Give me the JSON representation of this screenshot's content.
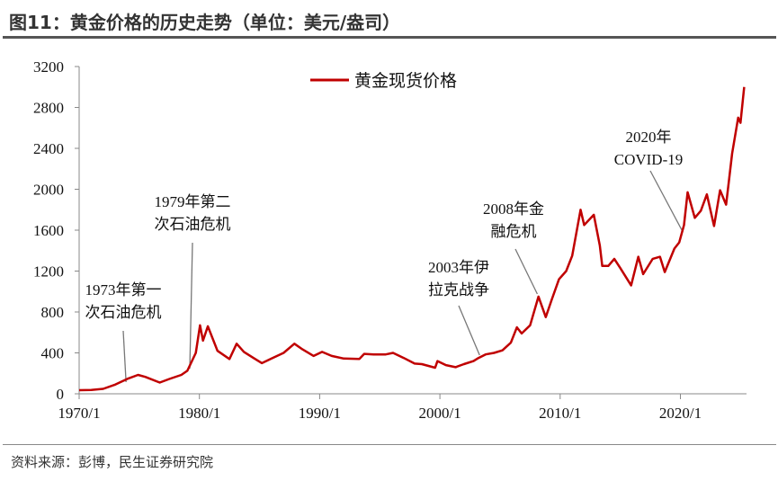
{
  "title": "图11：黄金价格的历史走势（单位：美元/盎司）",
  "source": "资料来源：彭博，民生证券研究院",
  "chart_data": {
    "type": "line",
    "xlabel": "",
    "ylabel": "",
    "xlim": [
      1970,
      2025.5
    ],
    "ylim": [
      0,
      3200
    ],
    "yticks": [
      "0",
      "400",
      "800",
      "1200",
      "1600",
      "2000",
      "2400",
      "2800",
      "3200"
    ],
    "xticks": [
      {
        "year": 1970,
        "label": "1970/1"
      },
      {
        "year": 1980,
        "label": "1980/1"
      },
      {
        "year": 1990,
        "label": "1990/1"
      },
      {
        "year": 2000,
        "label": "2000/1"
      },
      {
        "year": 2010,
        "label": "2010/1"
      },
      {
        "year": 2020,
        "label": "2020/1"
      }
    ],
    "legend": {
      "position": "top-center",
      "label": "黄金现货价格"
    },
    "color": "#c00000",
    "series": [
      {
        "name": "黄金现货价格",
        "x": [
          1970,
          1971,
          1972,
          1973,
          1974.1,
          1974.9,
          1975.5,
          1976.7,
          1977.5,
          1978.5,
          1979.0,
          1979.7,
          1980.05,
          1980.3,
          1980.7,
          1981.5,
          1982.5,
          1983.1,
          1983.7,
          1984.5,
          1985.2,
          1986,
          1987,
          1987.9,
          1988.5,
          1989.5,
          1990.2,
          1991,
          1992,
          1993.3,
          1993.7,
          1994.5,
          1995.5,
          1996.1,
          1997,
          1997.9,
          1998.5,
          1999.6,
          1999.8,
          2000.5,
          2001.3,
          2002,
          2002.8,
          2003.2,
          2003.8,
          2004.5,
          2005.2,
          2005.9,
          2006.4,
          2006.8,
          2007.5,
          2008.2,
          2008.8,
          2009.3,
          2009.9,
          2010.5,
          2011.0,
          2011.7,
          2012.0,
          2012.8,
          2013.3,
          2013.5,
          2014,
          2014.5,
          2015,
          2015.9,
          2016.5,
          2016.9,
          2017.7,
          2018.3,
          2018.7,
          2019.5,
          2019.9,
          2020.3,
          2020.6,
          2021.2,
          2021.7,
          2022.2,
          2022.8,
          2023.3,
          2023.8,
          2024.0,
          2024.3,
          2024.8,
          2025.0,
          2025.3
        ],
        "values": [
          35,
          38,
          48,
          90,
          150,
          185,
          165,
          110,
          145,
          185,
          225,
          400,
          670,
          520,
          660,
          420,
          340,
          490,
          410,
          350,
          300,
          345,
          400,
          490,
          440,
          370,
          410,
          370,
          345,
          340,
          390,
          385,
          385,
          400,
          350,
          295,
          290,
          255,
          320,
          280,
          260,
          290,
          320,
          350,
          385,
          400,
          425,
          500,
          650,
          590,
          670,
          950,
          750,
          920,
          1120,
          1200,
          1350,
          1800,
          1650,
          1750,
          1450,
          1250,
          1250,
          1320,
          1230,
          1060,
          1340,
          1170,
          1320,
          1340,
          1190,
          1420,
          1480,
          1650,
          1970,
          1720,
          1790,
          1950,
          1640,
          1990,
          1850,
          2050,
          2350,
          2700,
          2650,
          3000
        ]
      }
    ],
    "annotations": [
      {
        "lines": [
          "1973年第一",
          "次石油危机"
        ],
        "year": 1973.9
      },
      {
        "lines": [
          "1979年第二",
          "次石油危机"
        ],
        "year": 1979.2
      },
      {
        "lines": [
          "2003年伊",
          "拉克战争"
        ],
        "year": 2003.3
      },
      {
        "lines": [
          "2008年金",
          "融危机"
        ],
        "year": 2008.1
      },
      {
        "lines": [
          "2020年",
          "COVID-19"
        ],
        "year": 2020.2
      }
    ]
  }
}
